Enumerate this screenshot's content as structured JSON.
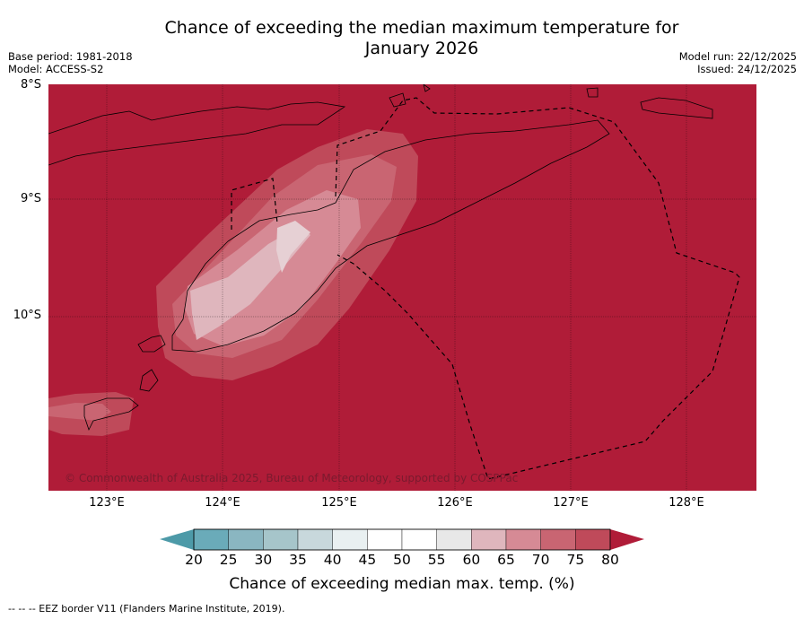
{
  "title_line1": "Chance of exceeding the median maximum temperature for",
  "title_line2": "January 2026",
  "meta_left": {
    "base_period": "Base period: 1981-2018",
    "model": "Model: ACCESS-S2"
  },
  "meta_right": {
    "model_run": "Model run: 22/12/2025",
    "issued": "Issued: 24/12/2025"
  },
  "map": {
    "lat_labels": [
      "8°S",
      "9°S",
      "10°S"
    ],
    "lon_labels": [
      "123°E",
      "124°E",
      "125°E",
      "126°E",
      "127°E",
      "128°E"
    ],
    "copyright": "© Commonwealth of Australia 2025, Bureau of Meteorology, supported by COSPPac",
    "background_color": "#b01c38"
  },
  "colorbar": {
    "labels": [
      "20",
      "25",
      "30",
      "35",
      "40",
      "45",
      "50",
      "55",
      "60",
      "65",
      "70",
      "75",
      "80"
    ],
    "colors": [
      "#4d9aa8",
      "#6aabb9",
      "#8ab6c1",
      "#a6c5ca",
      "#c8d8dc",
      "#e9f0f1",
      "#ffffff",
      "#ffffff",
      "#e8e8e8",
      "#dfb6bd",
      "#d68a95",
      "#c96572",
      "#bf4a5a",
      "#b01c38"
    ],
    "title": "Chance of exceeding median max. temp. (%)"
  },
  "footnote": "--  --  -- EEZ border V11 (Flanders Marine Institute, 2019)."
}
